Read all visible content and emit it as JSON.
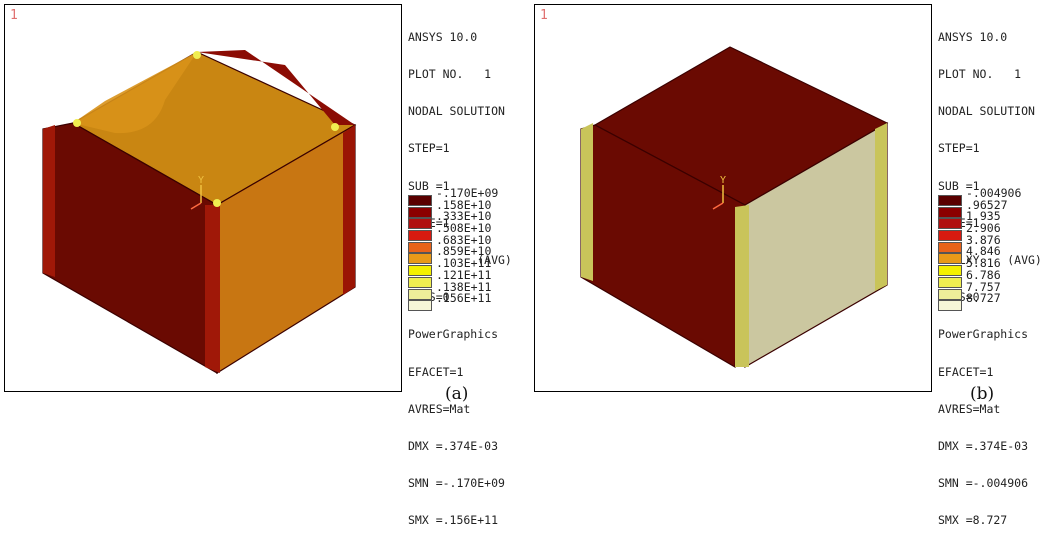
{
  "panels": [
    {
      "corner": "1",
      "caption": "(a)",
      "axis_label": "Y",
      "info": [
        "ANSYS 10.0",
        "PLOT NO.   1",
        "NODAL SOLUTION",
        "STEP=1",
        "SUB =1",
        "TIME=1",
        "SXY       (AVG)",
        "RSYS=0",
        "PowerGraphics",
        "EFACET=1",
        "AVRES=Mat",
        "DMX =.374E-03",
        "SMN =-.170E+09",
        "SMX =.156E+11"
      ],
      "legend": [
        "-.170E+09",
        ".158E+10",
        ".333E+10",
        ".508E+10",
        ".683E+10",
        ".859E+10",
        ".103E+11",
        ".121E+11",
        ".138E+11",
        ".156E+11"
      ]
    },
    {
      "corner": "1",
      "caption": "(b)",
      "axis_label": "Y",
      "info": [
        "ANSYS 10.0",
        "PLOT NO.   1",
        "NODAL SOLUTION",
        "STEP=1",
        "SUB =1",
        "TIME=1",
        "EPELXY    (AVG)",
        "RSYS=0",
        "PowerGraphics",
        "EFACET=1",
        "AVRES=Mat",
        "DMX =.374E-03",
        "SMN =-.004906",
        "SMX =8.727"
      ],
      "legend": [
        "-.004906",
        ".96527",
        "1.935",
        "2.906",
        "3.876",
        "4.846",
        "5.816",
        "6.786",
        "7.757",
        "8.727"
      ]
    }
  ],
  "legend_colors": [
    "#5a0000",
    "#8b0000",
    "#b01010",
    "#d81a10",
    "#e8631a",
    "#e89a18",
    "#f4f000",
    "#f0ee50",
    "#eeee9a",
    "#f6f6d8"
  ],
  "colors": {
    "dark_red": "#5a0000",
    "orange": "#c97a14",
    "pale_yellow": "#c9c49a",
    "frame": "#000000",
    "corner_label": "#e07070"
  }
}
